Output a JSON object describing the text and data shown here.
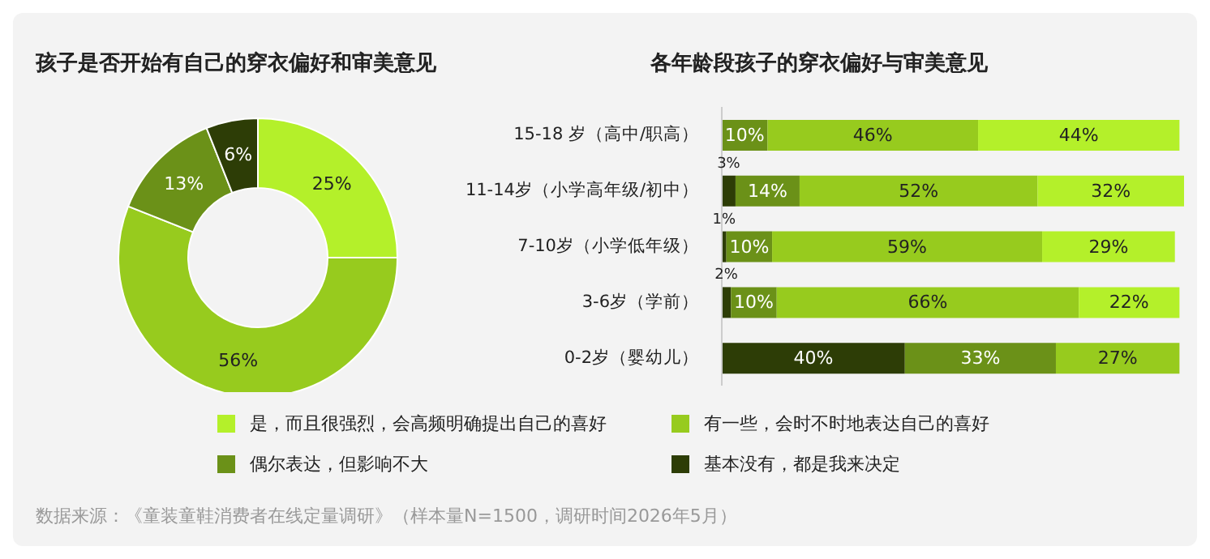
{
  "chart_data": [
    {
      "type": "donut",
      "title": "孩子是否开始有自己的穿衣偏好和审美意见",
      "categories": [
        "是，而且很强烈，会高频明确提出自己的喜好",
        "有一些，会时不时地表达自己的喜好",
        "偶尔表达，但影响不大",
        "基本没有，都是我来决定"
      ],
      "values": [
        25,
        56,
        13,
        6
      ],
      "colors": [
        "#b4f02a",
        "#97cb1e",
        "#6b9118",
        "#2d3d06"
      ],
      "value_labels": [
        "25%",
        "56%",
        "13%",
        "6%"
      ],
      "legend": "bottom"
    },
    {
      "type": "bar",
      "orientation": "horizontal",
      "stacked": true,
      "title": "各年龄段孩子的穿衣偏好与审美意见",
      "categories": [
        "15-18 岁（高中/职高）",
        "11-14岁（小学高年级/初中）",
        "7-10岁（小学低年级）",
        "3-6岁（学前）",
        "0-2岁（婴幼儿）"
      ],
      "series": [
        {
          "color": "#2d3d06",
          "values": [
            0,
            3,
            1,
            2,
            40
          ],
          "value_labels": [
            null,
            "3%",
            "1%",
            "2%",
            "40%"
          ]
        },
        {
          "color": "#6b9118",
          "values": [
            10,
            14,
            10,
            10,
            33
          ],
          "value_labels": [
            "10%",
            "14%",
            "10%",
            "10%",
            "33%"
          ]
        },
        {
          "color": "#97cb1e",
          "values": [
            46,
            52,
            59,
            66,
            27
          ],
          "value_labels": [
            "46%",
            "52%",
            "59%",
            "66%",
            "27%"
          ]
        },
        {
          "color": "#b4f02a",
          "values": [
            44,
            32,
            29,
            22,
            0
          ],
          "value_labels": [
            "44%",
            "32%",
            "29%",
            "22%",
            null
          ]
        }
      ],
      "annotations": [
        "数据来源：《童装童鞋消费者在线定量调研》（样本量N=1500，调研时间2026年5月）"
      ]
    }
  ]
}
